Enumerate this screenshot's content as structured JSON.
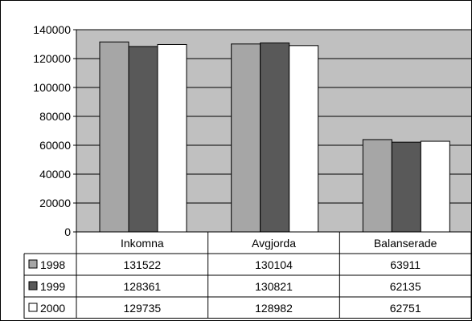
{
  "chart_data": {
    "type": "bar",
    "categories": [
      "Inkomna",
      "Avgjorda",
      "Balanserade"
    ],
    "series": [
      {
        "name": "1998",
        "values": [
          131522,
          130104,
          63911
        ],
        "color": "#a6a6a6"
      },
      {
        "name": "1999",
        "values": [
          128361,
          130821,
          62135
        ],
        "color": "#595959"
      },
      {
        "name": "2000",
        "values": [
          129735,
          128982,
          62751
        ],
        "color": "#ffffff"
      }
    ],
    "ylim": [
      0,
      140000
    ],
    "yticks": [
      0,
      20000,
      40000,
      60000,
      80000,
      100000,
      120000,
      140000
    ],
    "plot_background": "#c0c0c0",
    "grid": true,
    "data_table": true
  }
}
